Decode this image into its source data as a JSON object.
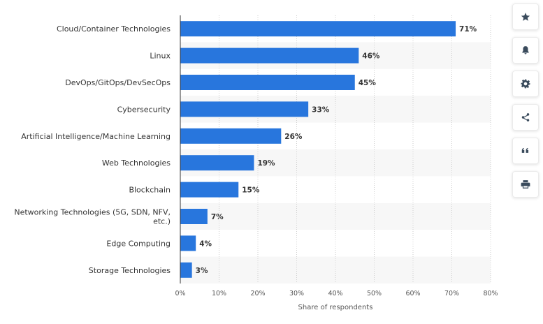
{
  "chart_data": {
    "type": "bar",
    "orientation": "horizontal",
    "categories": [
      "Cloud/Container Technologies",
      "Linux",
      "DevOps/GitOps/DevSecOps",
      "Cybersecurity",
      "Artificial Intelligence/Machine Learning",
      "Web Technologies",
      "Blockchain",
      "Networking Technologies (5G, SDN, NFV, etc.)",
      "Edge Computing",
      "Storage Technologies"
    ],
    "category_lines": [
      [
        "Cloud/Container Technologies"
      ],
      [
        "Linux"
      ],
      [
        "DevOps/GitOps/DevSecOps"
      ],
      [
        "Cybersecurity"
      ],
      [
        "Artificial Intelligence/Machine Learning"
      ],
      [
        "Web Technologies"
      ],
      [
        "Blockchain"
      ],
      [
        "Networking Technologies (5G, SDN, NFV,",
        "etc.)"
      ],
      [
        "Edge Computing"
      ],
      [
        "Storage Technologies"
      ]
    ],
    "values": [
      71,
      46,
      45,
      33,
      26,
      19,
      15,
      7,
      4,
      3
    ],
    "value_labels": [
      "71%",
      "46%",
      "45%",
      "33%",
      "26%",
      "19%",
      "15%",
      "7%",
      "4%",
      "3%"
    ],
    "xlabel": "Share of respondents",
    "xlim": [
      0,
      80
    ],
    "ticks": [
      0,
      10,
      20,
      30,
      40,
      50,
      60,
      70,
      80
    ],
    "tick_labels": [
      "0%",
      "10%",
      "20%",
      "30%",
      "40%",
      "50%",
      "60%",
      "70%",
      "80%"
    ],
    "bar_color": "#2876dd",
    "grid": true
  },
  "toolbar": {
    "buttons": [
      {
        "name": "favorite-button",
        "icon": "star-icon"
      },
      {
        "name": "notification-button",
        "icon": "bell-icon"
      },
      {
        "name": "settings-button",
        "icon": "gear-icon"
      },
      {
        "name": "share-button",
        "icon": "share-icon"
      },
      {
        "name": "cite-button",
        "icon": "quote-icon"
      },
      {
        "name": "print-button",
        "icon": "printer-icon"
      }
    ]
  }
}
